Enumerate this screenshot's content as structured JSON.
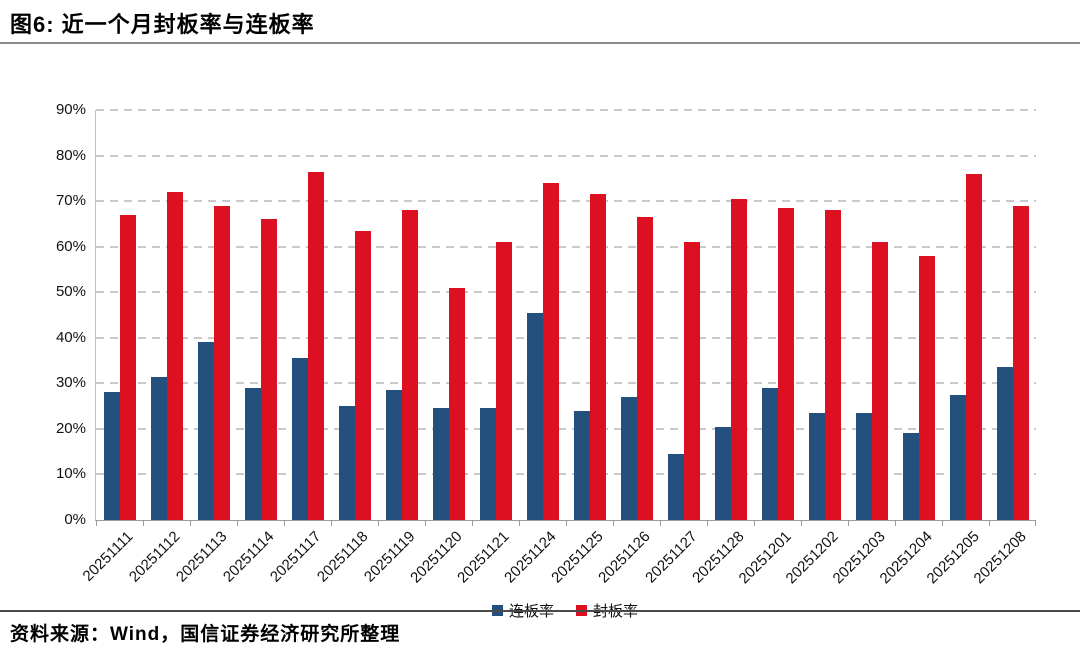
{
  "title": "图6: 近一个月封板率与连板率",
  "source": "资料来源：Wind，国信证券经济研究所整理",
  "colors": {
    "consecutive_limit_rate": "#24507D",
    "seal_rate": "#DD1021",
    "gridline": "#c9c9c9",
    "axis": "#9c9c9c"
  },
  "chart_data": {
    "type": "bar",
    "title": "图6: 近一个月封板率与连板率",
    "categories": [
      "20251111",
      "20251112",
      "20251113",
      "20251114",
      "20251117",
      "20251118",
      "20251119",
      "20251120",
      "20251121",
      "20251124",
      "20251125",
      "20251126",
      "20251127",
      "20251128",
      "20251201",
      "20251202",
      "20251203",
      "20251204",
      "20251205",
      "20251208"
    ],
    "series": [
      {
        "name": "连板率",
        "semantic": "consecutive-limit-rate",
        "color": "#24507D",
        "values": [
          28,
          31.5,
          39,
          29,
          35.5,
          25,
          28.5,
          24.5,
          24.5,
          45.5,
          24,
          27,
          14.5,
          20.5,
          29,
          23.5,
          23.5,
          19,
          27.5,
          33.5
        ]
      },
      {
        "name": "封板率",
        "semantic": "seal-rate",
        "color": "#DD1021",
        "values": [
          67,
          72,
          69,
          66,
          76.5,
          63.5,
          68,
          51,
          61,
          74,
          71.5,
          66.5,
          61,
          70.5,
          68.5,
          68,
          61,
          58,
          76,
          69
        ]
      }
    ],
    "ylabel": "",
    "xlabel": "",
    "ylim": [
      0,
      90
    ],
    "ytick_labels": [
      "0%",
      "10%",
      "20%",
      "30%",
      "40%",
      "50%",
      "60%",
      "70%",
      "80%",
      "90%"
    ],
    "grid": "horizontal-dashed",
    "legend_position": "bottom-center"
  }
}
